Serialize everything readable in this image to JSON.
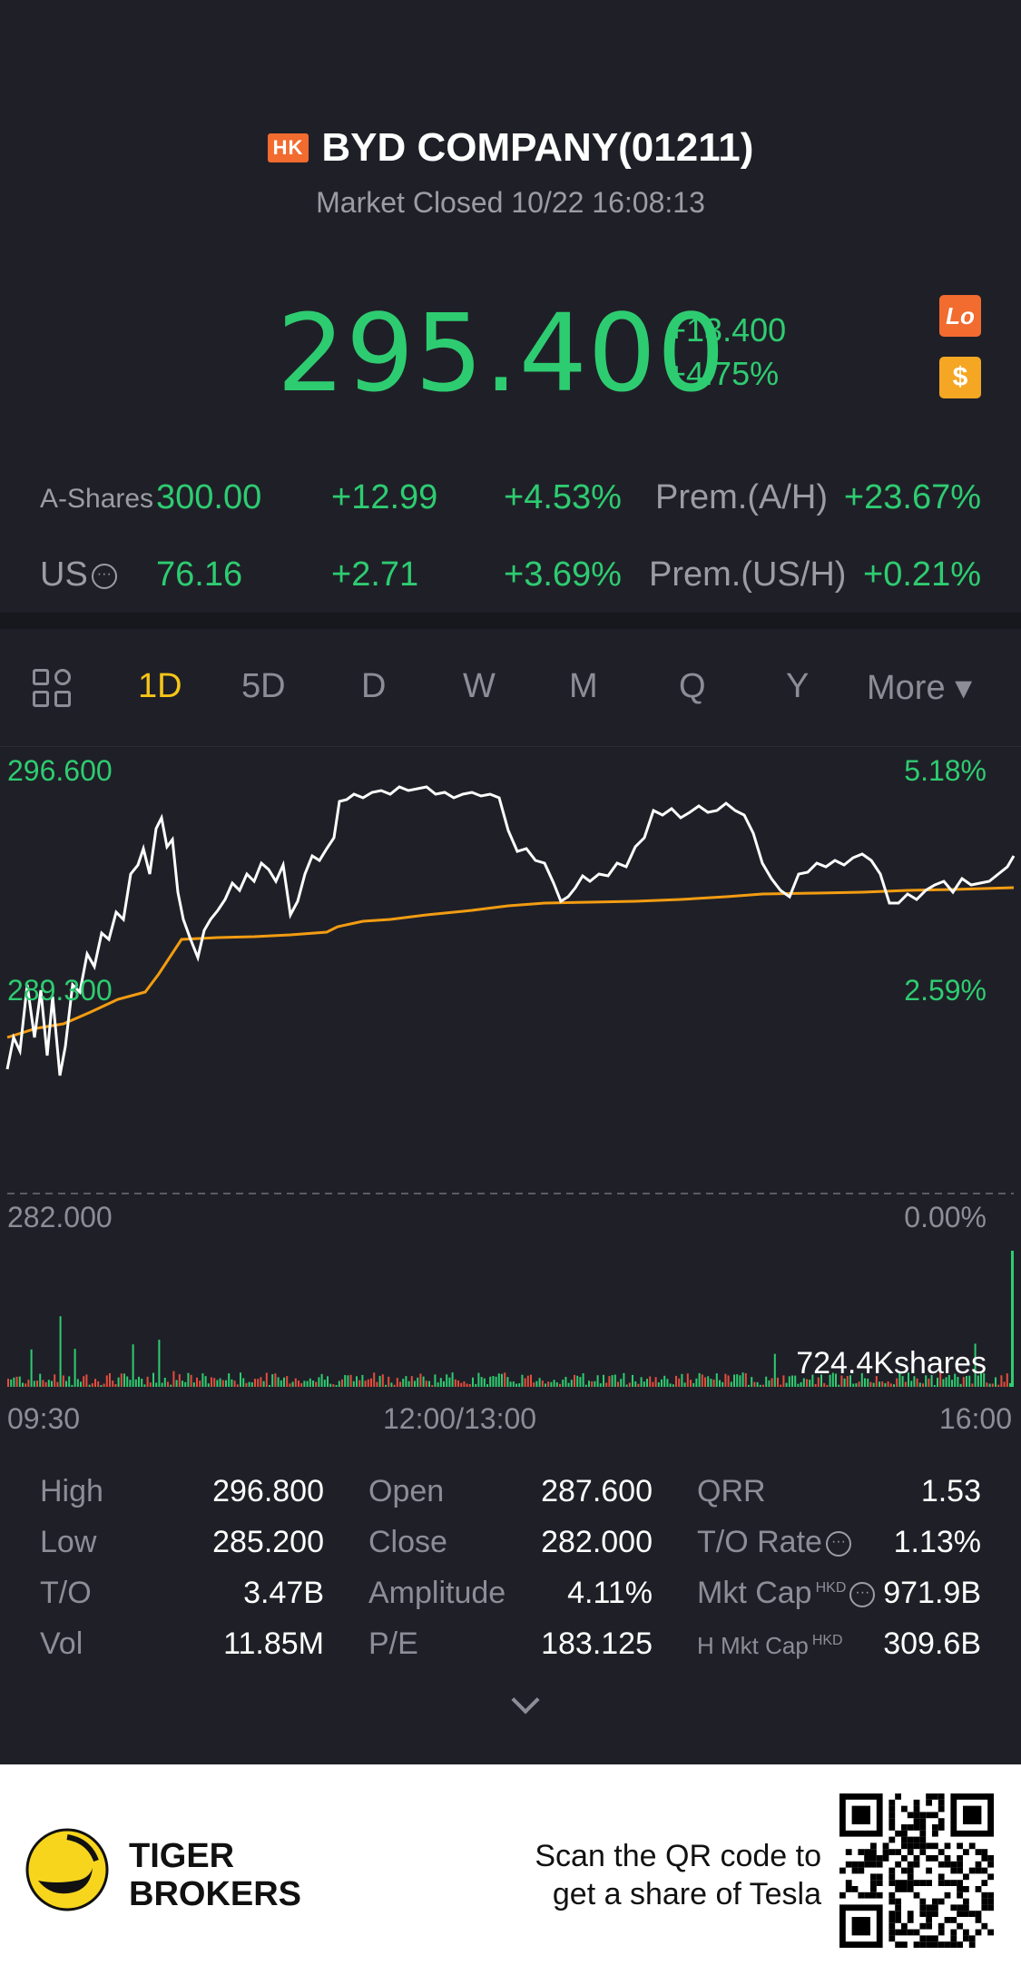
{
  "header": {
    "market_badge": "HK",
    "title": "BYD COMPANY(01211)",
    "status": "Market Closed 10/22 16:08:13",
    "price": "295.400",
    "change_abs": "+13.400",
    "change_pct": "+4.75%",
    "lo_badge": "Lo",
    "usd_badge": "$"
  },
  "cross_listing": [
    {
      "label": "A-Shares",
      "price": "300.00",
      "change": "+12.99",
      "pct": "+4.53%",
      "prem_label": "Prem.(A/H)",
      "prem_value": "+23.67%"
    },
    {
      "label": "US",
      "price": "76.16",
      "change": "+2.71",
      "pct": "+3.69%",
      "prem_label": "Prem.(US/H)",
      "prem_value": "+0.21%"
    }
  ],
  "tabs": [
    "1D",
    "5D",
    "D",
    "W",
    "M",
    "Q",
    "Y",
    "More ▾"
  ],
  "active_tab": "1D",
  "chart_labels": {
    "y_top": "296.600",
    "y_mid": "289.300",
    "y_bottom": "282.000",
    "pct_top": "5.18%",
    "pct_mid": "2.59%",
    "pct_bottom": "0.00%",
    "volume": "724.4Kshares"
  },
  "time_axis": {
    "start": "09:30",
    "mid": "12:00/13:00",
    "end": "16:00"
  },
  "stats": [
    [
      {
        "label": "High",
        "value": "296.800"
      },
      {
        "label": "Open",
        "value": "287.600"
      },
      {
        "label": "QRR",
        "value": "1.53"
      }
    ],
    [
      {
        "label": "Low",
        "value": "285.200"
      },
      {
        "label": "Close",
        "value": "282.000"
      },
      {
        "label": "T/O Rate",
        "value": "1.13%"
      }
    ],
    [
      {
        "label": "T/O",
        "value": "3.47B"
      },
      {
        "label": "Amplitude",
        "value": "4.11%"
      },
      {
        "label": "Mkt Cap",
        "value": "971.9B"
      }
    ],
    [
      {
        "label": "Vol",
        "value": "11.85M"
      },
      {
        "label": "P/E",
        "value": "183.125"
      },
      {
        "label": "H Mkt Cap",
        "value": "309.6B"
      }
    ]
  ],
  "currency_tag": "HKD",
  "footer": {
    "brand_line1": "TIGER",
    "brand_line2": "BROKERS",
    "scan_line1": "Scan the QR code to",
    "scan_line2": "get a share of Tesla"
  },
  "colors": {
    "up": "#2ecc71",
    "avg_line": "#f39c12",
    "accent_tab": "#f5c518",
    "bg": "#1f2027"
  }
}
